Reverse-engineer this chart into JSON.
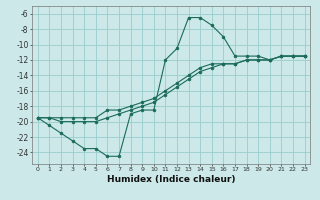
{
  "xlabel": "Humidex (Indice chaleur)",
  "ylabel": "",
  "background_color": "#cce8e8",
  "grid_color": "#99cccc",
  "line_color": "#1a6b5a",
  "xlim": [
    -0.5,
    23.5
  ],
  "ylim": [
    -25.5,
    -5.0
  ],
  "xticks": [
    0,
    1,
    2,
    3,
    4,
    5,
    6,
    7,
    8,
    9,
    10,
    11,
    12,
    13,
    14,
    15,
    16,
    17,
    18,
    19,
    20,
    21,
    22,
    23
  ],
  "yticks": [
    -6,
    -8,
    -10,
    -12,
    -14,
    -16,
    -18,
    -20,
    -22,
    -24
  ],
  "curve1_x": [
    0,
    1,
    2,
    3,
    4,
    5,
    6,
    7,
    8,
    9,
    10,
    11,
    12,
    13,
    14,
    15,
    16,
    17,
    18,
    19,
    20,
    21,
    22,
    23
  ],
  "curve1_y": [
    -19.5,
    -20.5,
    -21.5,
    -22.5,
    -23.5,
    -23.5,
    -24.5,
    -24.5,
    -19.0,
    -18.5,
    -18.5,
    -12.0,
    -10.5,
    -6.5,
    -6.5,
    -7.5,
    -9.0,
    -11.5,
    -11.5,
    -11.5,
    -12.0,
    -11.5,
    -11.5,
    -11.5
  ],
  "curve2_x": [
    0,
    1,
    2,
    3,
    4,
    5,
    6,
    7,
    8,
    9,
    10,
    11,
    12,
    13,
    14,
    15,
    16,
    17,
    18,
    19,
    20,
    21,
    22,
    23
  ],
  "curve2_y": [
    -19.5,
    -19.5,
    -19.5,
    -19.5,
    -19.5,
    -19.5,
    -18.5,
    -18.5,
    -18.0,
    -17.5,
    -17.0,
    -16.0,
    -15.0,
    -14.0,
    -13.0,
    -12.5,
    -12.5,
    -12.5,
    -12.0,
    -12.0,
    -12.0,
    -11.5,
    -11.5,
    -11.5
  ],
  "curve3_x": [
    0,
    1,
    2,
    3,
    4,
    5,
    6,
    7,
    8,
    9,
    10,
    11,
    12,
    13,
    14,
    15,
    16,
    17,
    18,
    19,
    20,
    21,
    22,
    23
  ],
  "curve3_y": [
    -19.5,
    -19.5,
    -20.0,
    -20.0,
    -20.0,
    -20.0,
    -19.5,
    -19.0,
    -18.5,
    -18.0,
    -17.5,
    -16.5,
    -15.5,
    -14.5,
    -13.5,
    -13.0,
    -12.5,
    -12.5,
    -12.0,
    -12.0,
    -12.0,
    -11.5,
    -11.5,
    -11.5
  ]
}
